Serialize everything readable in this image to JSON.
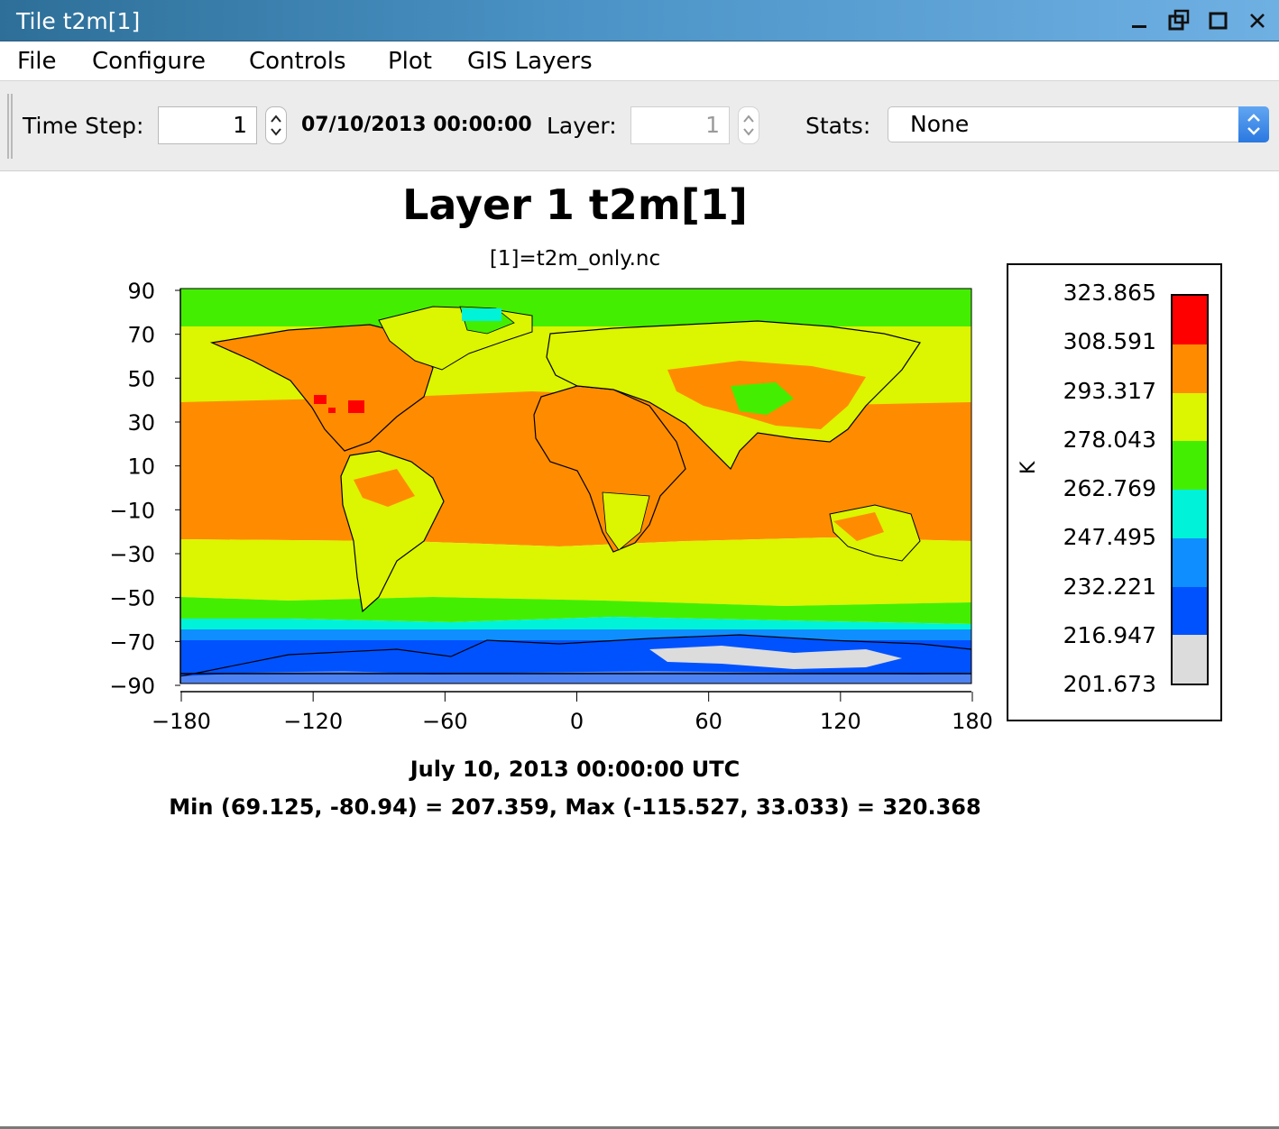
{
  "window": {
    "title": "Tile t2m[1]"
  },
  "menu": [
    "File",
    "Configure",
    "Controls",
    "Plot",
    "GIS Layers"
  ],
  "toolbar": {
    "time_step_label": "Time Step:",
    "time_step_value": "1",
    "date_text": "07/10/2013 00:00:00",
    "layer_label": "Layer:",
    "layer_value": "1",
    "stats_label": "Stats:",
    "stats_selected": "None"
  },
  "plot": {
    "title": "Layer 1 t2m[1]",
    "subtitle": "[1]=t2m_only.nc",
    "footer_date": "July 10, 2013 00:00:00 UTC",
    "footer_stats": "Min (69.125, -80.94) = 207.359, Max (-115.527, 33.033) = 320.368"
  },
  "legend": {
    "unit": "K",
    "ticks": [
      "323.865",
      "308.591",
      "293.317",
      "278.043",
      "262.769",
      "247.495",
      "232.221",
      "216.947",
      "201.673"
    ],
    "colors": [
      "#ff0000",
      "#ff8c00",
      "#dcf500",
      "#44ee00",
      "#00f2d8",
      "#0f8fff",
      "#0052ff",
      "#dcdcdc"
    ]
  },
  "chart_data": {
    "type": "heatmap",
    "title": "Layer 1 t2m[1]",
    "subtitle": "[1]=t2m_only.nc",
    "x_ticks": [
      "-180",
      "-120",
      "-60",
      "0",
      "60",
      "120",
      "180"
    ],
    "y_ticks": [
      "90",
      "70",
      "50",
      "30",
      "10",
      "-10",
      "-30",
      "-50",
      "-70",
      "-90"
    ],
    "xlim": [
      -180,
      180
    ],
    "ylim": [
      -90,
      90
    ],
    "colorbar_unit": "K",
    "colorbar_levels": [
      201.673,
      216.947,
      232.221,
      247.495,
      262.769,
      278.043,
      293.317,
      308.591,
      323.865
    ],
    "min": {
      "lon": 69.125,
      "lat": -80.94,
      "value": 207.359
    },
    "max": {
      "lon": -115.527,
      "lat": 33.033,
      "value": 320.368
    }
  }
}
